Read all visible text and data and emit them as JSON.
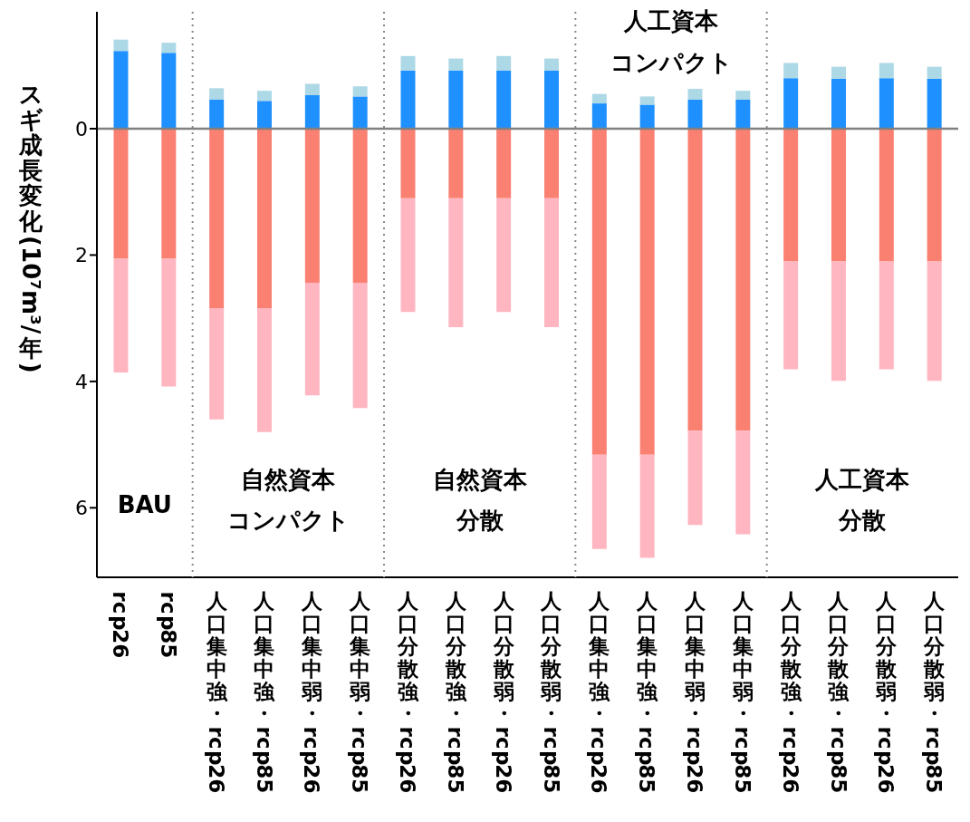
{
  "chart_data": {
    "type": "bar",
    "stacked": true,
    "ylabel": "スギ成長変化(10⁷m³/年)",
    "categories": [
      "rcp26",
      "rcp85",
      "人口集中強・rcp26",
      "人口集中強・rcp85",
      "人口集中弱・rcp26",
      "人口集中弱・rcp85",
      "人口分散強・rcp26",
      "人口分散強・rcp85",
      "人口分散弱・rcp26",
      "人口分散弱・rcp85",
      "人口集中強・rcp26",
      "人口集中強・rcp85",
      "人口集中弱・rcp26",
      "人口集中弱・rcp85",
      "人口分散強・rcp26",
      "人口分散強・rcp85",
      "人口分散弱・rcp26",
      "人口分散弱・rcp85"
    ],
    "series": [
      {
        "color": "#fa8072",
        "values": [
          2.06,
          2.06,
          2.84,
          2.84,
          2.44,
          2.44,
          1.1,
          1.1,
          1.1,
          1.1,
          5.16,
          5.16,
          4.78,
          4.78,
          2.1,
          2.1,
          2.1,
          2.1
        ]
      },
      {
        "color": "#ffb6c1",
        "values": [
          1.8,
          2.02,
          1.76,
          1.96,
          1.78,
          1.98,
          1.8,
          2.04,
          1.8,
          2.04,
          1.49,
          1.63,
          1.49,
          1.64,
          1.71,
          1.89,
          1.71,
          1.89
        ]
      },
      {
        "color": "#1e90ff",
        "values": [
          -1.23,
          -1.2,
          -0.46,
          -0.44,
          -0.53,
          -0.51,
          -0.92,
          -0.92,
          -0.92,
          -0.92,
          -0.4,
          -0.38,
          -0.46,
          -0.46,
          -0.8,
          -0.79,
          -0.8,
          -0.79
        ]
      },
      {
        "color": "#add8e6",
        "values": [
          -0.18,
          -0.16,
          -0.18,
          -0.16,
          -0.18,
          -0.16,
          -0.23,
          -0.19,
          -0.23,
          -0.19,
          -0.15,
          -0.13,
          -0.17,
          -0.14,
          -0.24,
          -0.19,
          -0.24,
          -0.19
        ]
      }
    ],
    "ylim": [
      7.1,
      -1.85
    ],
    "yticks": [
      0,
      2,
      4,
      6
    ],
    "ref_lines": [
      {
        "axis": "y",
        "value": 0,
        "color": "#808080"
      }
    ],
    "annotations": [
      "BAU",
      "自然資本",
      "コンパクト",
      "自然資本",
      "分散",
      "人工資本",
      "コンパクト",
      "人工資本",
      "分散"
    ],
    "grid": false,
    "legend": false
  }
}
